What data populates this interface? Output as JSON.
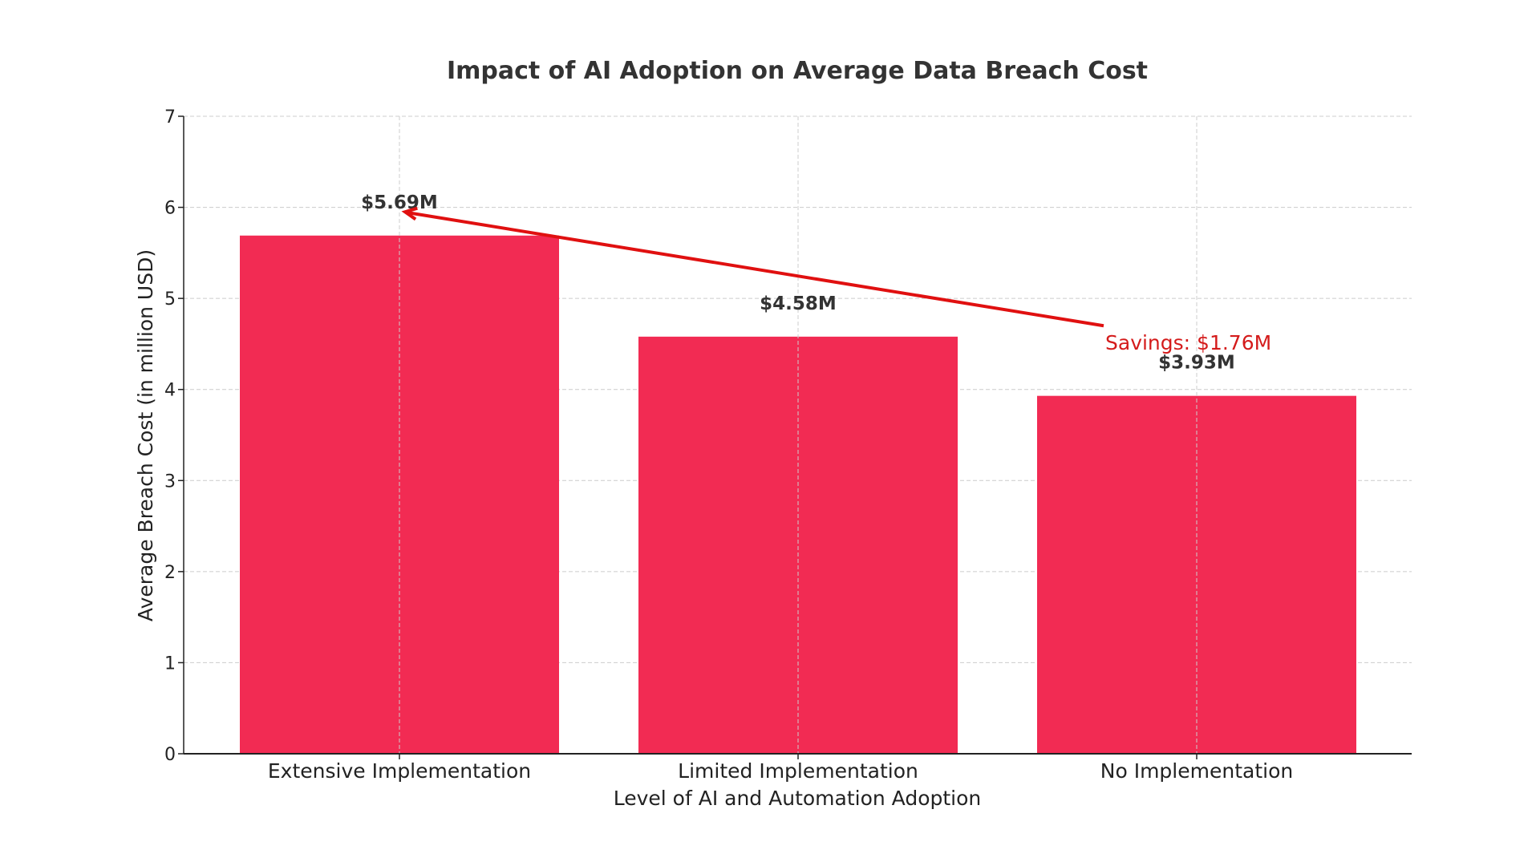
{
  "chart_data": {
    "type": "bar",
    "title": "Impact of AI Adoption on Average Data Breach Cost",
    "xlabel": "Level of AI and Automation Adoption",
    "ylabel": "Average Breach Cost (in million USD)",
    "categories": [
      "Extensive Implementation",
      "Limited Implementation",
      "No Implementation"
    ],
    "values": [
      5.69,
      4.58,
      3.93
    ],
    "data_labels": [
      "$5.69M",
      "$4.58M",
      "$3.93M"
    ],
    "ylim": [
      0,
      7
    ],
    "yticks": [
      0,
      1,
      2,
      3,
      4,
      5,
      6,
      7
    ],
    "grid": true,
    "bar_color": "#F22B53",
    "annotation": {
      "text": "Savings: $1.76M",
      "color": "#E01010",
      "arrow_from": {
        "category": "No Implementation",
        "value": 4.7
      },
      "arrow_to": {
        "category": "Extensive Implementation",
        "value": 5.95
      }
    }
  }
}
